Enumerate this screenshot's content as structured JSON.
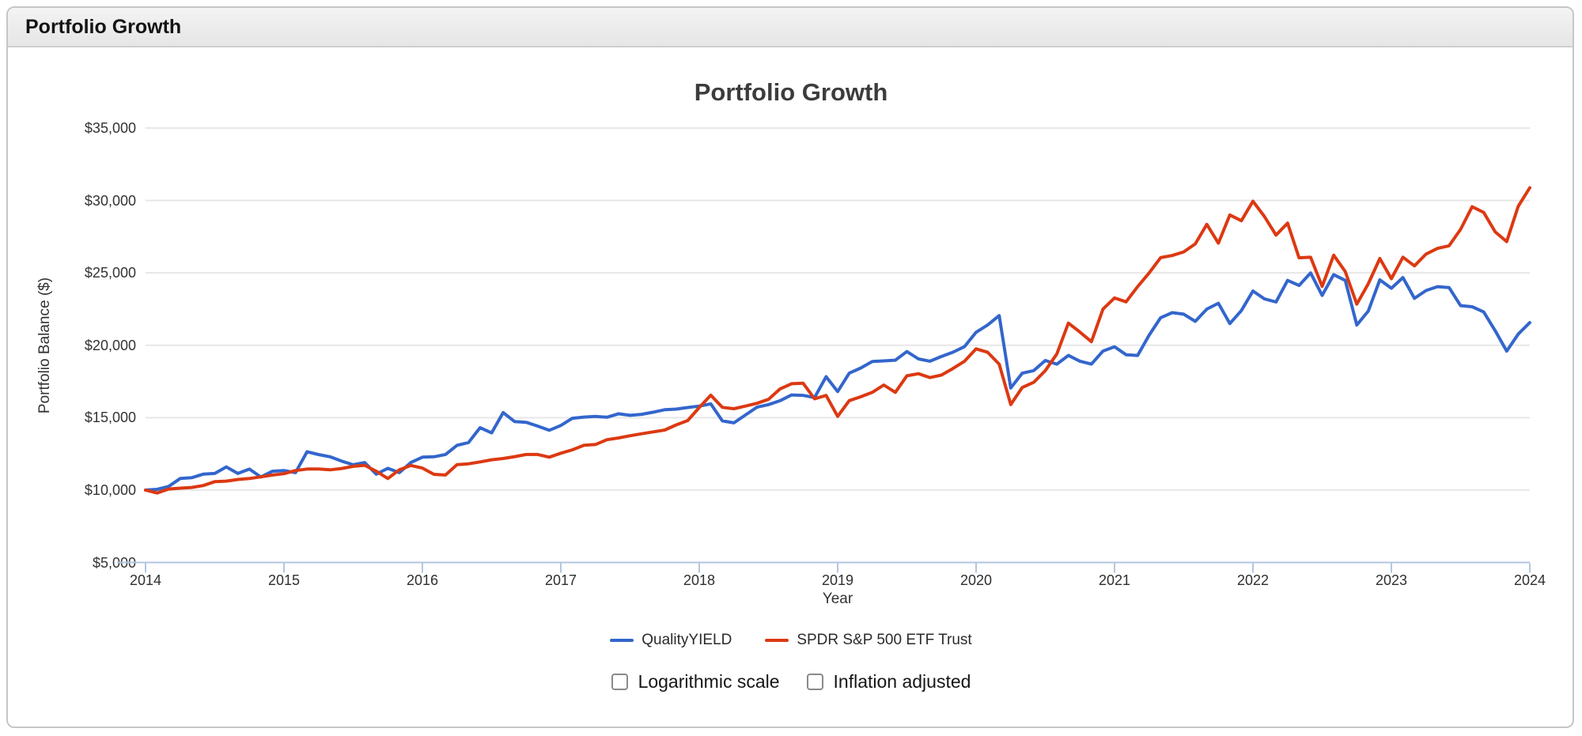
{
  "header": {
    "title": "Portfolio Growth"
  },
  "chart": {
    "title": "Portfolio Growth",
    "x_axis": {
      "title": "Year",
      "tick_labels": [
        "2014",
        "2015",
        "2016",
        "2017",
        "2018",
        "2019",
        "2020",
        "2021",
        "2022",
        "2023",
        "2024"
      ]
    },
    "y_axis": {
      "title": "Portfolio Balance ($)",
      "ticks": [
        {
          "value": 5000,
          "label": "$5,000"
        },
        {
          "value": 10000,
          "label": "$10,000"
        },
        {
          "value": 15000,
          "label": "$15,000"
        },
        {
          "value": 20000,
          "label": "$20,000"
        },
        {
          "value": 25000,
          "label": "$25,000"
        },
        {
          "value": 30000,
          "label": "$30,000"
        },
        {
          "value": 35000,
          "label": "$35,000"
        }
      ]
    }
  },
  "chart_data": {
    "type": "line",
    "title": "Portfolio Growth",
    "xlabel": "Year",
    "ylabel": "Portfolio Balance ($)",
    "x_start_year": 2014,
    "x_interval": "monthly",
    "xlim": [
      2014,
      2024
    ],
    "ylim": [
      5000,
      35000
    ],
    "grid": "horizontal",
    "legend_position": "bottom",
    "series": [
      {
        "name": "QualityYIELD",
        "color": "#3366cc",
        "values": [
          10000,
          10050,
          10250,
          10800,
          10850,
          11100,
          11150,
          11600,
          11150,
          11450,
          10900,
          11300,
          11350,
          11200,
          12650,
          12450,
          12300,
          12000,
          11750,
          11900,
          11100,
          11500,
          11200,
          11900,
          12270,
          12300,
          12460,
          13090,
          13280,
          14310,
          13950,
          15350,
          14730,
          14680,
          14420,
          14130,
          14460,
          14960,
          15040,
          15090,
          15030,
          15270,
          15160,
          15230,
          15380,
          15550,
          15590,
          15700,
          15800,
          15950,
          14780,
          14640,
          15180,
          15720,
          15900,
          16170,
          16570,
          16540,
          16390,
          17830,
          16805,
          18070,
          18430,
          18880,
          18920,
          18970,
          19565,
          19060,
          18900,
          19230,
          19520,
          19910,
          20900,
          21400,
          22050,
          17050,
          18070,
          18250,
          18950,
          18700,
          19300,
          18900,
          18700,
          19600,
          19900,
          19350,
          19300,
          20700,
          21900,
          22250,
          22150,
          21650,
          22500,
          22900,
          21500,
          22400,
          23750,
          23200,
          22990,
          24480,
          24130,
          25000,
          23440,
          24880,
          24480,
          21400,
          22360,
          24520,
          23940,
          24675,
          23240,
          23780,
          24050,
          23990,
          22740,
          22660,
          22300,
          21000,
          19600,
          20770,
          21565
        ]
      },
      {
        "name": "SPDR S&P 500 ETF Trust",
        "color": "#dc3912",
        "values": [
          10000,
          9800,
          10070,
          10130,
          10180,
          10310,
          10580,
          10620,
          10730,
          10800,
          10910,
          11040,
          11130,
          11350,
          11455,
          11455,
          11400,
          11490,
          11640,
          11710,
          11300,
          10800,
          11400,
          11700,
          11520,
          11090,
          11040,
          11760,
          11815,
          11945,
          12090,
          12180,
          12310,
          12455,
          12455,
          12270,
          12545,
          12780,
          13090,
          13145,
          13480,
          13600,
          13750,
          13890,
          14020,
          14145,
          14500,
          14800,
          15700,
          16550,
          15710,
          15620,
          15800,
          15990,
          16265,
          16985,
          17345,
          17380,
          16300,
          16535,
          15090,
          16175,
          16445,
          16750,
          17255,
          16750,
          17890,
          18035,
          17770,
          17945,
          18400,
          18900,
          19750,
          19515,
          18700,
          15910,
          17080,
          17440,
          18250,
          19400,
          21530,
          20910,
          20250,
          22500,
          23270,
          23000,
          24050,
          25000,
          26050,
          26200,
          26450,
          27000,
          28350,
          27050,
          29000,
          28600,
          29950,
          28885,
          27610,
          28435,
          26040,
          26080,
          24065,
          26220,
          25090,
          22840,
          24245,
          25990,
          24600,
          26080,
          25485,
          26295,
          26690,
          26870,
          28005,
          29570,
          29175,
          27825,
          27160,
          29600,
          30880
        ]
      }
    ]
  },
  "controls": {
    "logarithmic": {
      "label": "Logarithmic scale",
      "checked": false
    },
    "inflation": {
      "label": "Inflation adjusted",
      "checked": false
    }
  },
  "colors": {
    "series_blue": "#3366cc",
    "series_red": "#dc3912",
    "axis_line": "#b3c6e0",
    "gridline": "#e7e7e7"
  }
}
